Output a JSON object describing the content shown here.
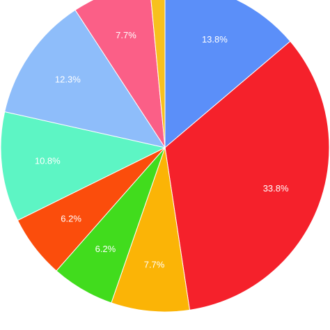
{
  "chart_data": {
    "type": "pie",
    "values": [
      13.8,
      33.8,
      7.7,
      6.2,
      6.2,
      10.8,
      12.3,
      7.7,
      1.5
    ],
    "value_labels": [
      "13.8%",
      "33.8%",
      "7.7%",
      "6.2%",
      "6.2%",
      "10.8%",
      "12.3%",
      "7.7%",
      null
    ],
    "colors": [
      "#5b8ff9",
      "#f5212b",
      "#fbb406",
      "#41dc1d",
      "#fb4d0c",
      "#5df5c4",
      "#8ebdfa",
      "#fb5f87",
      "#f7c11e"
    ]
  }
}
